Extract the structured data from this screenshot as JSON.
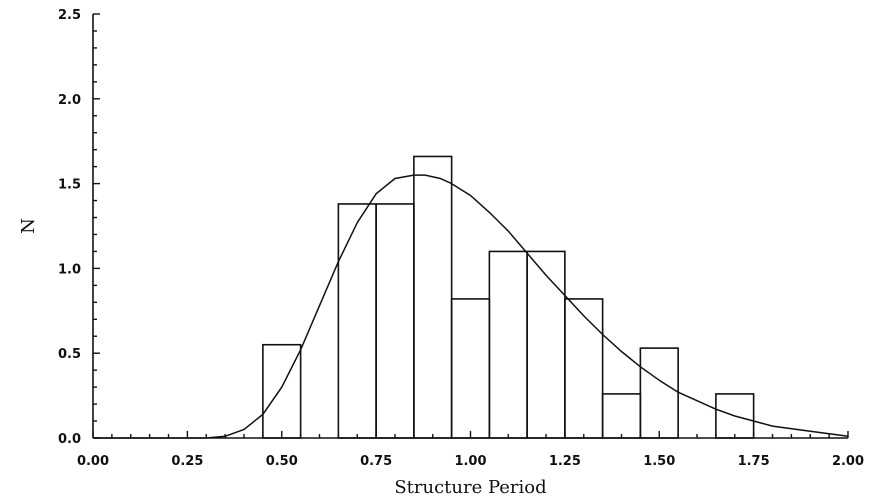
{
  "chart_data": {
    "type": "bar",
    "title": "",
    "xlabel": "Structure Period",
    "ylabel": "N",
    "xlim": [
      0.0,
      2.0
    ],
    "ylim": [
      0.0,
      2.5
    ],
    "x_ticks": [
      "0.00",
      "0.25",
      "0.50",
      "0.75",
      "1.00",
      "1.25",
      "1.50",
      "1.75",
      "2.00"
    ],
    "y_ticks": [
      "0.0",
      "0.5",
      "1.0",
      "1.5",
      "2.0",
      "2.5"
    ],
    "grid": false,
    "bins": [
      {
        "x0": 0.45,
        "x1": 0.55,
        "value": 0.55
      },
      {
        "x0": 0.65,
        "x1": 0.75,
        "value": 1.38
      },
      {
        "x0": 0.75,
        "x1": 0.85,
        "value": 1.38
      },
      {
        "x0": 0.85,
        "x1": 0.95,
        "value": 1.66
      },
      {
        "x0": 0.95,
        "x1": 1.05,
        "value": 0.82
      },
      {
        "x0": 1.05,
        "x1": 1.15,
        "value": 1.1
      },
      {
        "x0": 1.15,
        "x1": 1.25,
        "value": 1.1
      },
      {
        "x0": 1.25,
        "x1": 1.35,
        "value": 0.82
      },
      {
        "x0": 1.35,
        "x1": 1.45,
        "value": 0.26
      },
      {
        "x0": 1.45,
        "x1": 1.55,
        "value": 0.53
      },
      {
        "x0": 1.65,
        "x1": 1.75,
        "value": 0.26
      }
    ],
    "curve": {
      "type": "fitted-distribution",
      "x": [
        0.0,
        0.3,
        0.35,
        0.4,
        0.45,
        0.5,
        0.55,
        0.6,
        0.65,
        0.7,
        0.75,
        0.8,
        0.85,
        0.88,
        0.92,
        0.95,
        1.0,
        1.05,
        1.1,
        1.15,
        1.2,
        1.25,
        1.3,
        1.35,
        1.4,
        1.45,
        1.5,
        1.55,
        1.6,
        1.65,
        1.7,
        1.75,
        1.8,
        1.9,
        2.0
      ],
      "y": [
        0.0,
        0.0,
        0.01,
        0.05,
        0.14,
        0.3,
        0.52,
        0.78,
        1.04,
        1.27,
        1.44,
        1.53,
        1.55,
        1.55,
        1.53,
        1.5,
        1.43,
        1.33,
        1.22,
        1.09,
        0.96,
        0.84,
        0.72,
        0.61,
        0.51,
        0.42,
        0.34,
        0.27,
        0.22,
        0.17,
        0.13,
        0.1,
        0.07,
        0.04,
        0.01
      ]
    }
  }
}
